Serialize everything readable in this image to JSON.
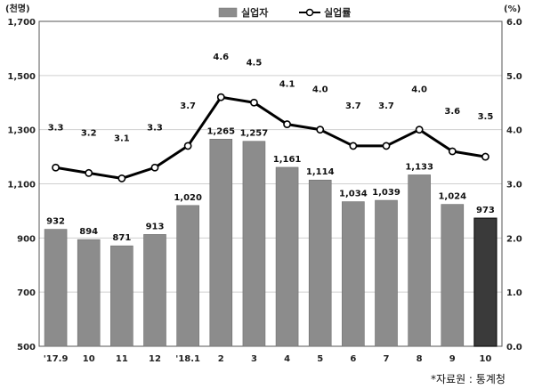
{
  "chart_data": {
    "type": "bar+line",
    "categories": [
      "'17.9",
      "10",
      "11",
      "12",
      "'18.1",
      "2",
      "3",
      "4",
      "5",
      "6",
      "7",
      "8",
      "9",
      "10"
    ],
    "series": [
      {
        "name": "실업자",
        "type": "bar",
        "axis": "left",
        "values": [
          932,
          894,
          871,
          913,
          1020,
          1265,
          1257,
          1161,
          1114,
          1034,
          1039,
          1133,
          1024,
          973
        ],
        "labels": [
          "932",
          "894",
          "871",
          "913",
          "1,020",
          "1,265",
          "1,257",
          "1,161",
          "1,114",
          "1,034",
          "1,039",
          "1,133",
          "1,024",
          "973"
        ],
        "color": "#8c8c8c",
        "highlight_color": "#3a3a3a",
        "highlight_index": 13
      },
      {
        "name": "실업률",
        "type": "line",
        "axis": "right",
        "values": [
          3.3,
          3.2,
          3.1,
          3.3,
          3.7,
          4.6,
          4.5,
          4.1,
          4.0,
          3.7,
          3.7,
          4.0,
          3.6,
          3.5
        ],
        "labels": [
          "3.3",
          "3.2",
          "3.1",
          "3.3",
          "3.7",
          "4.6",
          "4.5",
          "4.1",
          "4.0",
          "3.7",
          "3.7",
          "4.0",
          "3.6",
          "3.5"
        ],
        "color": "#000000"
      }
    ],
    "y_left": {
      "unit_label": "(천명)",
      "range": [
        500,
        1700
      ],
      "ticks": [
        500,
        700,
        900,
        1100,
        1300,
        1500,
        1700
      ],
      "tick_labels": [
        "500",
        "700",
        "900",
        "1,100",
        "1,300",
        "1,500",
        "1,700"
      ]
    },
    "y_right": {
      "unit_label": "(%)",
      "range": [
        0,
        6
      ],
      "ticks": [
        0,
        1,
        2,
        3,
        4,
        5,
        6
      ],
      "tick_labels": [
        "0.0",
        "1.0",
        "2.0",
        "3.0",
        "4.0",
        "5.0",
        "6.0"
      ]
    },
    "grid": "horizontal",
    "legend_position": "top-center",
    "source_note": "*자료원 : 통계청"
  }
}
